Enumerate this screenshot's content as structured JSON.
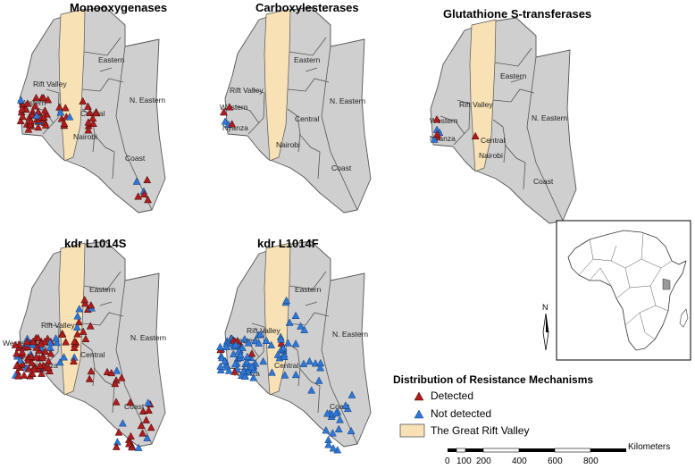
{
  "colors": {
    "detected": "#b01c1c",
    "not_detected": "#2f78d8",
    "rift": "#f7e1b5",
    "land": "#cfcfcf"
  },
  "maps": [
    {
      "title": "Monooxygenases",
      "regions": [
        "Eastern",
        "Rift Valley",
        "N. Eastern",
        "Western",
        "Central",
        "Nairobi",
        "Coast"
      ]
    },
    {
      "title": "Carboxylesterases",
      "regions": [
        "Eastern",
        "Rift Valley",
        "N. Eastern",
        "Western",
        "Nyanza",
        "Central",
        "Nairobi",
        "Coast"
      ]
    },
    {
      "title": "Glutathione S-transferases",
      "regions": [
        "Eastern",
        "Rift Valley",
        "N. Eastern",
        "Western",
        "Nyanza",
        "Central",
        "Nairobi",
        "Coast"
      ]
    },
    {
      "title": "kdr L1014S",
      "regions": [
        "Eastern",
        "Rift Valley",
        "N. Eastern",
        "Western",
        "Nyanza",
        "Central",
        "Coast"
      ]
    },
    {
      "title": "kdr L1014F",
      "regions": [
        "Eastern",
        "Rift Valley",
        "N. Eastern",
        "Western",
        "Nyanza",
        "Central",
        "Coast"
      ]
    }
  ],
  "north_arrow": "N",
  "legend": {
    "title": "Distribution of Resistance Mechanisms",
    "detected": "Detected",
    "not_detected": "Not detected",
    "rift": "The Great Rift Valley"
  },
  "scale": {
    "unit": "Kilometers",
    "ticks": [
      "0",
      "100",
      "200",
      "400",
      "600",
      "800"
    ]
  }
}
